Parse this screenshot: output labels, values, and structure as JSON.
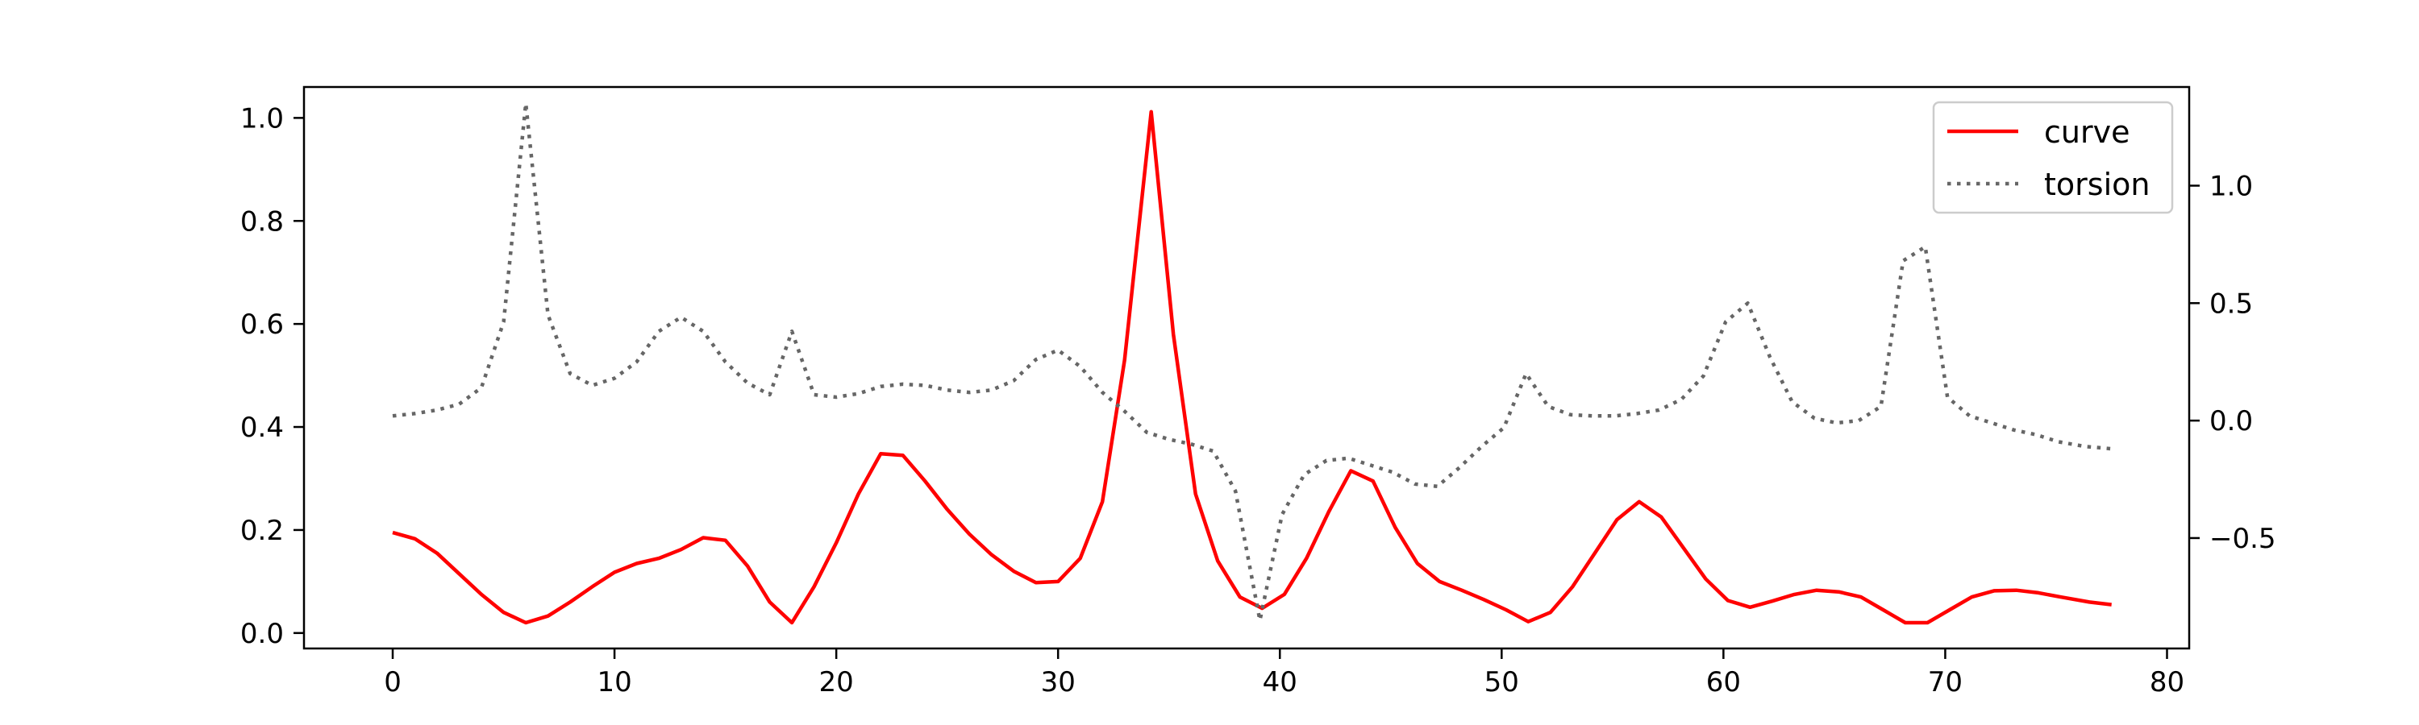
{
  "chart_data": {
    "type": "line",
    "title": "",
    "xlabel": "",
    "ylabel": "",
    "y2label": "",
    "xlim": [
      -4,
      81
    ],
    "ylim": [
      -0.03,
      1.06
    ],
    "y2lim": [
      -0.97,
      1.42
    ],
    "x_ticks": [
      0,
      10,
      20,
      30,
      40,
      50,
      60,
      70,
      80
    ],
    "x_tick_labels": [
      "0",
      "10",
      "20",
      "30",
      "40",
      "50",
      "60",
      "70",
      "80"
    ],
    "y_ticks": [
      0.0,
      0.2,
      0.4,
      0.6,
      0.8,
      1.0
    ],
    "y_tick_labels": [
      "0.0",
      "0.2",
      "0.4",
      "0.6",
      "0.8",
      "1.0"
    ],
    "y2_ticks": [
      -0.5,
      0.0,
      0.5,
      1.0
    ],
    "y2_tick_labels": [
      "−0.5",
      "0.0",
      "0.5",
      "1.0"
    ],
    "grid": false,
    "legend_position": "top-right",
    "series": [
      {
        "name": "curve",
        "axis": "left",
        "color": "#ff0000",
        "style": "solid",
        "points": [
          [
            0,
            0.195
          ],
          [
            1,
            0.183
          ],
          [
            2,
            0.155
          ],
          [
            3,
            0.115
          ],
          [
            4,
            0.075
          ],
          [
            5,
            0.04
          ],
          [
            6,
            0.02
          ],
          [
            7,
            0.033
          ],
          [
            8,
            0.06
          ],
          [
            9,
            0.09
          ],
          [
            10,
            0.118
          ],
          [
            11,
            0.135
          ],
          [
            12,
            0.145
          ],
          [
            13,
            0.162
          ],
          [
            14,
            0.185
          ],
          [
            15,
            0.18
          ],
          [
            16,
            0.13
          ],
          [
            17,
            0.06
          ],
          [
            18,
            0.02
          ],
          [
            19,
            0.09
          ],
          [
            20,
            0.175
          ],
          [
            21,
            0.27
          ],
          [
            22,
            0.348
          ],
          [
            23,
            0.345
          ],
          [
            24,
            0.295
          ],
          [
            25,
            0.24
          ],
          [
            26,
            0.192
          ],
          [
            27,
            0.152
          ],
          [
            28,
            0.12
          ],
          [
            29,
            0.098
          ],
          [
            30,
            0.1
          ],
          [
            31,
            0.145
          ],
          [
            32,
            0.255
          ],
          [
            33,
            0.53
          ],
          [
            34.2,
            1.012
          ],
          [
            35.2,
            0.58
          ],
          [
            36.2,
            0.27
          ],
          [
            37.2,
            0.14
          ],
          [
            38.2,
            0.07
          ],
          [
            39.2,
            0.048
          ],
          [
            40.2,
            0.075
          ],
          [
            41.2,
            0.145
          ],
          [
            42.2,
            0.235
          ],
          [
            43.2,
            0.315
          ],
          [
            44.2,
            0.295
          ],
          [
            45.2,
            0.205
          ],
          [
            46.2,
            0.135
          ],
          [
            47.2,
            0.1
          ],
          [
            48.2,
            0.083
          ],
          [
            49.2,
            0.065
          ],
          [
            50.2,
            0.045
          ],
          [
            51.2,
            0.022
          ],
          [
            52.2,
            0.04
          ],
          [
            53.2,
            0.09
          ],
          [
            54.2,
            0.155
          ],
          [
            55.2,
            0.22
          ],
          [
            56.2,
            0.255
          ],
          [
            57.2,
            0.225
          ],
          [
            58.2,
            0.165
          ],
          [
            59.2,
            0.105
          ],
          [
            60.2,
            0.063
          ],
          [
            61.2,
            0.05
          ],
          [
            62.2,
            0.062
          ],
          [
            63.2,
            0.075
          ],
          [
            64.2,
            0.083
          ],
          [
            65.2,
            0.08
          ],
          [
            66.2,
            0.07
          ],
          [
            67.2,
            0.045
          ],
          [
            68.2,
            0.02
          ],
          [
            69.2,
            0.02
          ],
          [
            70.2,
            0.045
          ],
          [
            71.2,
            0.07
          ],
          [
            72.2,
            0.082
          ],
          [
            73.2,
            0.083
          ],
          [
            74.2,
            0.078
          ],
          [
            75.2,
            0.07
          ],
          [
            76.5,
            0.06
          ],
          [
            77.5,
            0.055
          ]
        ]
      },
      {
        "name": "torsion",
        "axis": "right",
        "color": "#666666",
        "style": "dotted",
        "points": [
          [
            0,
            0.02
          ],
          [
            1,
            0.03
          ],
          [
            2,
            0.045
          ],
          [
            3,
            0.07
          ],
          [
            4,
            0.14
          ],
          [
            5,
            0.42
          ],
          [
            6,
            1.35
          ],
          [
            7,
            0.45
          ],
          [
            8,
            0.2
          ],
          [
            9,
            0.15
          ],
          [
            10,
            0.18
          ],
          [
            11,
            0.25
          ],
          [
            12,
            0.38
          ],
          [
            13,
            0.44
          ],
          [
            14,
            0.38
          ],
          [
            15,
            0.25
          ],
          [
            16,
            0.16
          ],
          [
            17,
            0.11
          ],
          [
            18,
            0.38
          ],
          [
            19,
            0.11
          ],
          [
            20,
            0.1
          ],
          [
            21,
            0.115
          ],
          [
            22,
            0.145
          ],
          [
            23,
            0.155
          ],
          [
            24,
            0.15
          ],
          [
            25,
            0.13
          ],
          [
            26,
            0.12
          ],
          [
            27,
            0.13
          ],
          [
            28,
            0.17
          ],
          [
            29,
            0.26
          ],
          [
            30,
            0.3
          ],
          [
            31,
            0.23
          ],
          [
            32,
            0.12
          ],
          [
            33,
            0.04
          ],
          [
            34,
            -0.05
          ],
          [
            35,
            -0.08
          ],
          [
            36,
            -0.1
          ],
          [
            37,
            -0.13
          ],
          [
            38,
            -0.3
          ],
          [
            39.1,
            -0.85
          ],
          [
            40.1,
            -0.4
          ],
          [
            41.1,
            -0.23
          ],
          [
            42.1,
            -0.17
          ],
          [
            43.1,
            -0.16
          ],
          [
            44.1,
            -0.19
          ],
          [
            45.1,
            -0.22
          ],
          [
            46.1,
            -0.27
          ],
          [
            47.1,
            -0.28
          ],
          [
            48.1,
            -0.2
          ],
          [
            49.1,
            -0.11
          ],
          [
            50.1,
            -0.03
          ],
          [
            51.1,
            0.2
          ],
          [
            52.1,
            0.06
          ],
          [
            53.1,
            0.025
          ],
          [
            54.1,
            0.02
          ],
          [
            55.1,
            0.02
          ],
          [
            56.1,
            0.03
          ],
          [
            57.1,
            0.045
          ],
          [
            58.1,
            0.09
          ],
          [
            59.1,
            0.19
          ],
          [
            60.1,
            0.42
          ],
          [
            61.1,
            0.5
          ],
          [
            62.1,
            0.27
          ],
          [
            63.1,
            0.08
          ],
          [
            64.1,
            0.01
          ],
          [
            65.1,
            -0.01
          ],
          [
            66.1,
            0.0
          ],
          [
            67.1,
            0.06
          ],
          [
            68.1,
            0.68
          ],
          [
            69.1,
            0.74
          ],
          [
            70.1,
            0.1
          ],
          [
            71.1,
            0.02
          ],
          [
            72.1,
            -0.01
          ],
          [
            73.1,
            -0.04
          ],
          [
            74.1,
            -0.06
          ],
          [
            75.1,
            -0.09
          ],
          [
            76.3,
            -0.11
          ],
          [
            77.5,
            -0.12
          ]
        ]
      }
    ]
  }
}
